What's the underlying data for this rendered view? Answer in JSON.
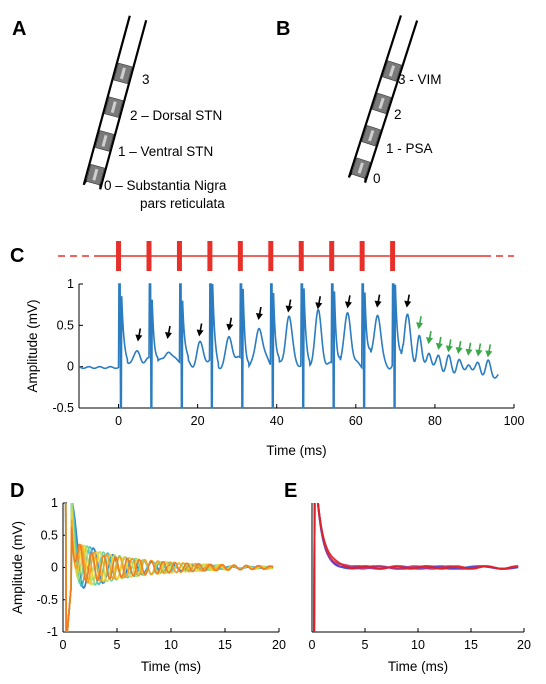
{
  "figure": {
    "panels": {
      "A": {
        "letter": "A",
        "contacts": [
          "3",
          "2 – Dorsal STN",
          "1 – Ventral STN",
          "0 – Substantia Nigra"
        ],
        "contact0_line2": "pars reticulata"
      },
      "B": {
        "letter": "B",
        "contacts": [
          "3 - VIM",
          "2",
          "1 - PSA",
          "0"
        ]
      },
      "C": {
        "letter": "C"
      },
      "D": {
        "letter": "D"
      },
      "E": {
        "letter": "E"
      }
    },
    "colors": {
      "stim_red": "#e8302a",
      "trace_blue": "#2b7cc0",
      "arrow_black": "#000000",
      "arrow_green": "#3aa84a",
      "lead_gray": "#7a7a7a"
    }
  },
  "chart_data": [
    {
      "panel": "C",
      "type": "line",
      "xlabel": "Time (ms)",
      "ylabel": "Amplitude (mV)",
      "xlim": [
        -10,
        100
      ],
      "ylim": [
        -0.5,
        1
      ],
      "xticks": [
        0,
        20,
        40,
        60,
        80,
        100
      ],
      "yticks": [
        -0.5,
        0,
        0.5,
        1
      ],
      "ytick_labels": [
        "-0.5",
        "0",
        "0.5",
        "1"
      ],
      "stimulus_pulses_ms": [
        0,
        7.7,
        15.4,
        23.1,
        30.8,
        38.5,
        46.2,
        53.9,
        61.6,
        69.3
      ],
      "black_arrow_peaks": [
        {
          "x": 5,
          "y": 0.22
        },
        {
          "x": 12.5,
          "y": 0.25
        },
        {
          "x": 20.5,
          "y": 0.28
        },
        {
          "x": 28,
          "y": 0.35
        },
        {
          "x": 35.5,
          "y": 0.48
        },
        {
          "x": 43,
          "y": 0.57
        },
        {
          "x": 50.5,
          "y": 0.61
        },
        {
          "x": 58,
          "y": 0.62
        },
        {
          "x": 65.5,
          "y": 0.63
        },
        {
          "x": 73,
          "y": 0.63
        }
      ],
      "green_arrow_peaks": [
        {
          "x": 76,
          "y": 0.38
        },
        {
          "x": 78.5,
          "y": 0.2
        },
        {
          "x": 81,
          "y": 0.13
        },
        {
          "x": 83.5,
          "y": 0.1
        },
        {
          "x": 86,
          "y": 0.08
        },
        {
          "x": 88.5,
          "y": 0.06
        },
        {
          "x": 91,
          "y": 0.05
        },
        {
          "x": 93.5,
          "y": 0.04
        }
      ]
    },
    {
      "panel": "D",
      "type": "line",
      "xlabel": "Time (ms)",
      "ylabel": "Amplitude (mV)",
      "xlim": [
        0,
        20
      ],
      "ylim": [
        -1,
        1
      ],
      "xticks": [
        0,
        5,
        10,
        15,
        20
      ],
      "yticks": [
        -1,
        -0.5,
        0,
        0.5,
        1
      ],
      "ytick_labels": [
        "-1",
        "-0.5",
        "0",
        "0.5",
        "1"
      ],
      "series_colors": [
        "#2b7cc0",
        "#3fb8c8",
        "#66d0a0",
        "#b9e05a",
        "#f4d030",
        "#f6a020",
        "#f07820"
      ]
    },
    {
      "panel": "E",
      "type": "line",
      "xlabel": "Time (ms)",
      "ylabel": "",
      "xlim": [
        0,
        20
      ],
      "ylim": [
        -1,
        1
      ],
      "xticks": [
        0,
        5,
        10,
        15,
        20
      ],
      "series_colors": [
        "#2b4fd8",
        "#6a3cc8",
        "#c0306a",
        "#e02020"
      ]
    }
  ]
}
